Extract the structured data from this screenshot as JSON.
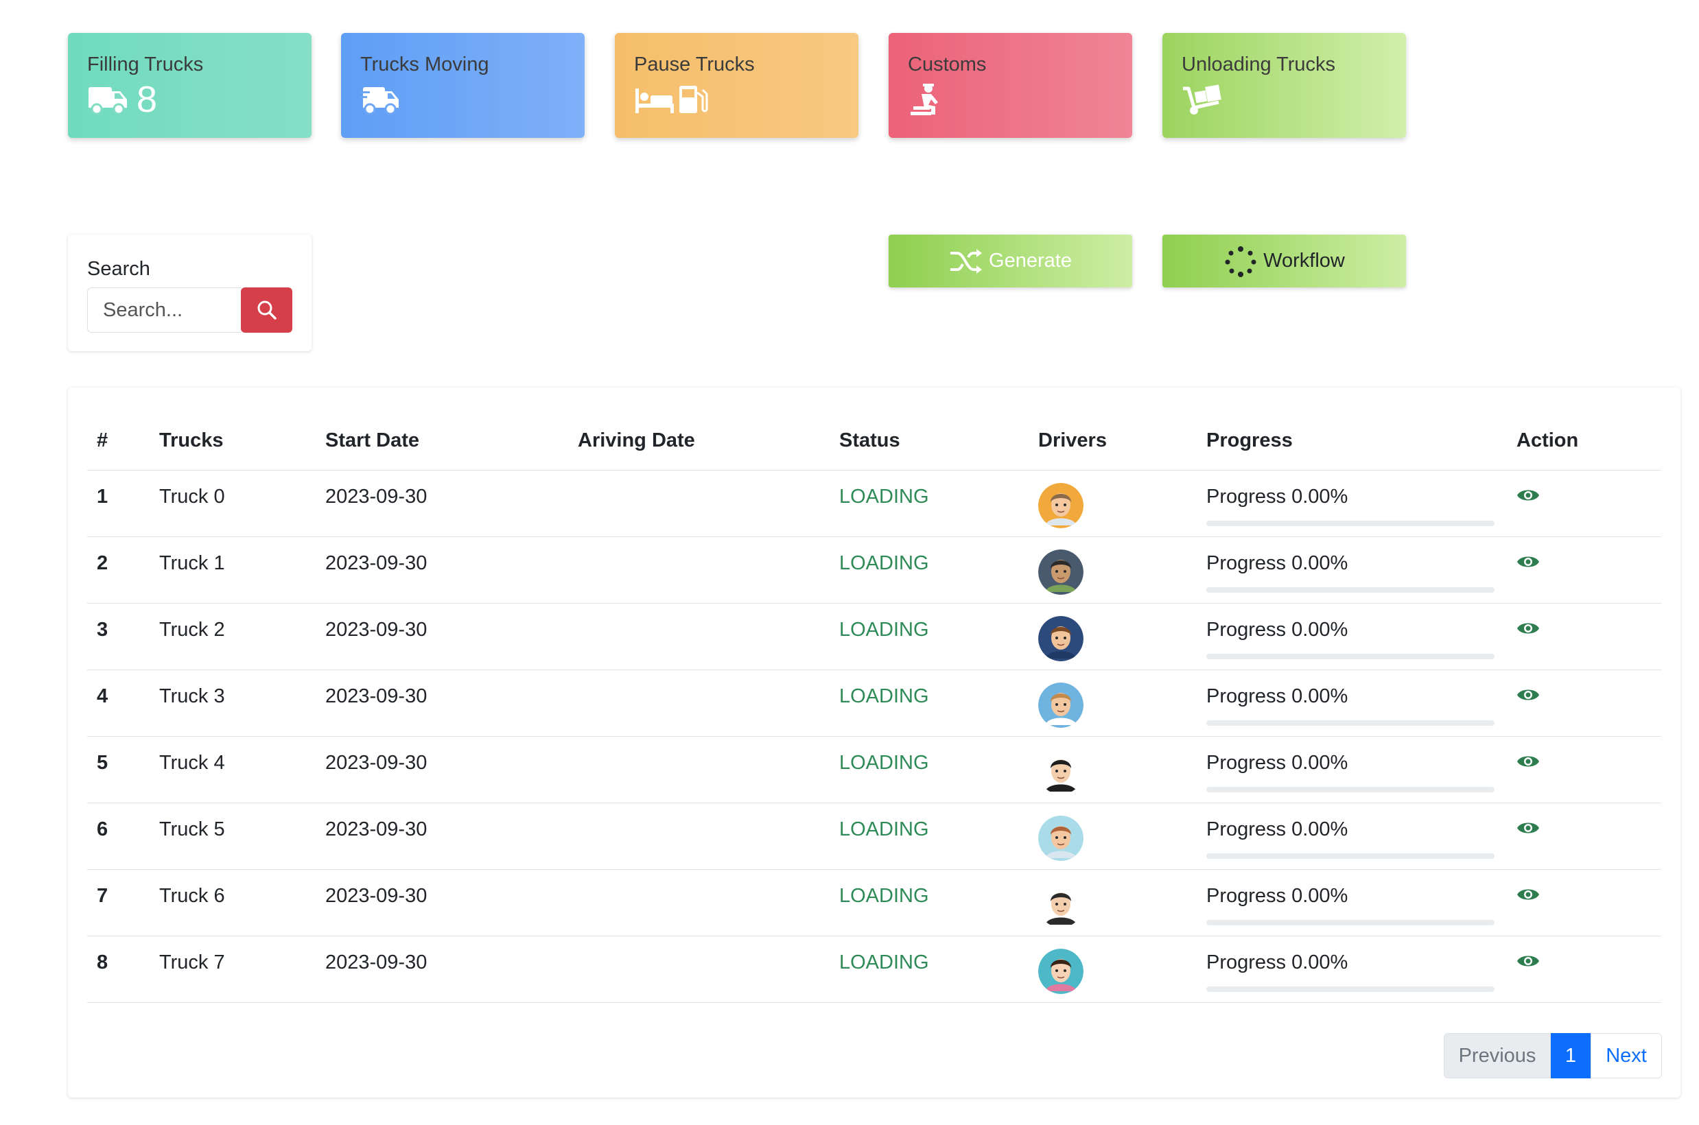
{
  "status_cards": [
    {
      "title": "Filling Trucks",
      "count": "8",
      "icon": "truck-icon"
    },
    {
      "title": "Trucks Moving",
      "count": "",
      "icon": "truck-moving-icon"
    },
    {
      "title": "Pause Trucks",
      "count": "",
      "icon": "bed-gas-pump-icon"
    },
    {
      "title": "Customs",
      "count": "",
      "icon": "customs-officer-icon"
    },
    {
      "title": "Unloading Trucks",
      "count": "",
      "icon": "dolly-icon"
    }
  ],
  "search": {
    "label": "Search",
    "placeholder": "Search..."
  },
  "actions": {
    "generate_label": "Generate",
    "workflow_label": "Workflow"
  },
  "table": {
    "headers": [
      "#",
      "Trucks",
      "Start Date",
      "Ariving Date",
      "Status",
      "Drivers",
      "Progress",
      "Action"
    ],
    "rows": [
      {
        "num": "1",
        "truck": "Truck 0",
        "start": "2023-09-30",
        "arrive": "",
        "status": "LOADING",
        "progress_label": "Progress 0.00%",
        "progress": 0
      },
      {
        "num": "2",
        "truck": "Truck 1",
        "start": "2023-09-30",
        "arrive": "",
        "status": "LOADING",
        "progress_label": "Progress 0.00%",
        "progress": 0
      },
      {
        "num": "3",
        "truck": "Truck 2",
        "start": "2023-09-30",
        "arrive": "",
        "status": "LOADING",
        "progress_label": "Progress 0.00%",
        "progress": 0
      },
      {
        "num": "4",
        "truck": "Truck 3",
        "start": "2023-09-30",
        "arrive": "",
        "status": "LOADING",
        "progress_label": "Progress 0.00%",
        "progress": 0
      },
      {
        "num": "5",
        "truck": "Truck 4",
        "start": "2023-09-30",
        "arrive": "",
        "status": "LOADING",
        "progress_label": "Progress 0.00%",
        "progress": 0
      },
      {
        "num": "6",
        "truck": "Truck 5",
        "start": "2023-09-30",
        "arrive": "",
        "status": "LOADING",
        "progress_label": "Progress 0.00%",
        "progress": 0
      },
      {
        "num": "7",
        "truck": "Truck 6",
        "start": "2023-09-30",
        "arrive": "",
        "status": "LOADING",
        "progress_label": "Progress 0.00%",
        "progress": 0
      },
      {
        "num": "8",
        "truck": "Truck 7",
        "start": "2023-09-30",
        "arrive": "",
        "status": "LOADING",
        "progress_label": "Progress 0.00%",
        "progress": 0
      }
    ]
  },
  "pagination": {
    "previous": "Previous",
    "current": "1",
    "next": "Next"
  },
  "colors": {
    "status_loading": "#2e8b57",
    "search_button": "#d43f4a",
    "page_active": "#0d6efd",
    "action_icon": "#2e7d4f"
  }
}
